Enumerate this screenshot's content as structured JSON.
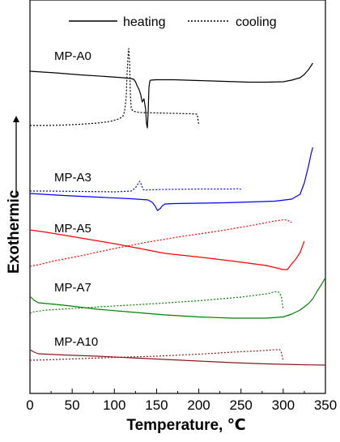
{
  "chart_data": {
    "type": "line",
    "title": "",
    "xlabel": "Temperature, ℃",
    "ylabel": "Exothermic",
    "xlim": [
      0,
      350
    ],
    "x_ticks": [
      "0",
      "50",
      "100",
      "150",
      "200",
      "250",
      "300",
      "350"
    ],
    "grid": false,
    "legend": {
      "placement": "top",
      "entries": [
        {
          "label": "heating",
          "style": "solid"
        },
        {
          "label": "cooling",
          "style": "dotted"
        }
      ]
    },
    "samples": [
      {
        "name": "MP-A0",
        "color": "#000000",
        "heating": {
          "x": [
            0,
            30,
            60,
            90,
            110,
            115,
            120,
            123,
            125,
            127,
            129,
            131,
            133,
            135,
            137,
            138,
            139,
            140,
            141,
            142,
            143,
            150,
            170,
            200,
            230,
            260,
            280,
            300,
            310,
            320,
            325,
            330,
            335
          ],
          "y": [
            88,
            90,
            92.5,
            94.5,
            96,
            96.5,
            97,
            98,
            101,
            106,
            110,
            116,
            126,
            122,
            135,
            152,
            158,
            140,
            108,
            100,
            99,
            98.5,
            98.5,
            99.5,
            100.5,
            101.5,
            101.5,
            101,
            99,
            96,
            92,
            86,
            78
          ]
        },
        "cooling": {
          "x": [
            0,
            20,
            40,
            60,
            80,
            95,
            105,
            110,
            112,
            114,
            115,
            116,
            117,
            118,
            119,
            120,
            122,
            125,
            130,
            150,
            170,
            190,
            198,
            200
          ],
          "y": [
            155,
            155,
            154.5,
            153.5,
            152,
            150,
            147,
            144,
            138,
            120,
            92,
            72,
            60,
            78,
            118,
            134,
            137,
            138,
            139,
            139.5,
            140,
            140.5,
            141,
            154
          ]
        }
      },
      {
        "name": "MP-A3",
        "color": "#0000ff",
        "heating": {
          "x": [
            0,
            40,
            80,
            120,
            140,
            145,
            148,
            151,
            154,
            157,
            160,
            170,
            200,
            230,
            260,
            290,
            310,
            320,
            325,
            330,
            333,
            335
          ],
          "y": [
            239,
            241.5,
            243.5,
            245.5,
            247,
            250,
            254,
            260,
            258,
            254,
            252,
            251.5,
            251,
            250.5,
            249.5,
            248.5,
            246,
            240,
            226,
            205,
            190,
            182
          ]
        },
        "cooling": {
          "x": [
            0,
            20,
            60,
            100,
            120,
            125,
            128,
            130,
            132,
            134,
            136,
            140,
            160,
            200,
            240,
            248,
            250
          ],
          "y": [
            236,
            236,
            236.5,
            237,
            236,
            232,
            227,
            224,
            228,
            234,
            235,
            234.5,
            234,
            233.5,
            233.5,
            233,
            234
          ]
        }
      },
      {
        "name": "MP-A5",
        "color": "#ff0000",
        "heating": {
          "x": [
            0,
            20,
            60,
            100,
            140,
            160,
            200,
            240,
            280,
            300,
            305,
            310,
            315,
            320,
            325
          ],
          "y": [
            284,
            287,
            294,
            301,
            309,
            313,
            317.5,
            322.5,
            328,
            333,
            333,
            326,
            320,
            312,
            298
          ]
        },
        "cooling": {
          "x": [
            0,
            10,
            30,
            60,
            100,
            140,
            180,
            220,
            260,
            290,
            300,
            305,
            310
          ],
          "y": [
            329,
            327,
            322,
            316,
            307,
            299,
            292,
            286,
            279,
            273,
            271.5,
            272,
            275
          ]
        }
      },
      {
        "name": "MP-A7",
        "color": "#008000",
        "heating": {
          "x": [
            0,
            5,
            10,
            40,
            80,
            120,
            160,
            200,
            240,
            280,
            300,
            310,
            320,
            330,
            335,
            340,
            345,
            350
          ],
          "y": [
            366,
            371,
            374,
            377,
            382,
            385.5,
            389,
            391.5,
            393,
            393,
            391.5,
            388,
            383,
            375,
            369,
            360,
            352,
            343
          ]
        },
        "cooling": {
          "x": [
            0,
            5,
            20,
            60,
            100,
            150,
            200,
            250,
            280,
            290,
            293,
            296,
            298,
            299,
            300
          ],
          "y": [
            387,
            385,
            383,
            380.5,
            378,
            375,
            371.5,
            367,
            363,
            360.5,
            360,
            362,
            368,
            375,
            382
          ]
        }
      },
      {
        "name": "MP-A10",
        "color": "#8b1a1a",
        "heating": {
          "x": [
            0,
            5,
            10,
            40,
            80,
            120,
            160,
            200,
            240,
            280,
            300,
            320,
            350
          ],
          "y": [
            432,
            435,
            437,
            438.5,
            440,
            442,
            444,
            446,
            448,
            449.5,
            450,
            450.5,
            451
          ]
        },
        "cooling": {
          "x": [
            0,
            20,
            60,
            100,
            150,
            200,
            240,
            270,
            290,
            296,
            298,
            299,
            300
          ],
          "y": [
            445,
            444.5,
            443,
            441.5,
            440,
            437.5,
            435,
            433.5,
            432,
            432,
            436,
            441,
            446
          ]
        }
      }
    ]
  }
}
